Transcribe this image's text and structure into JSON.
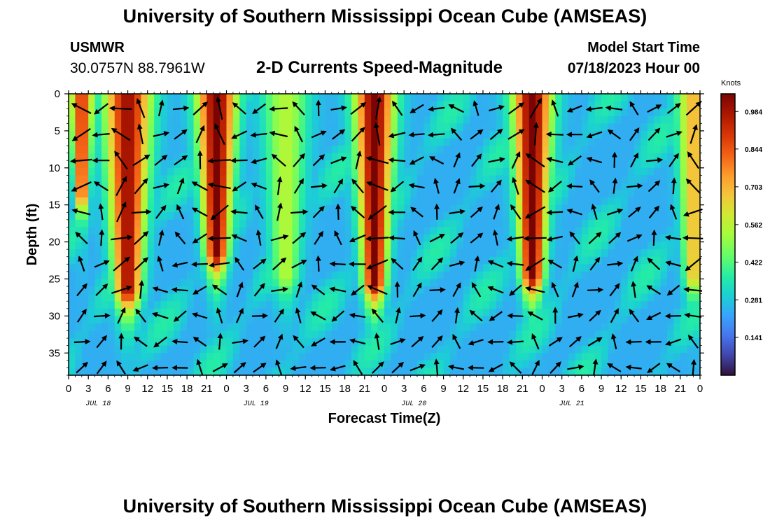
{
  "header": {
    "title": "University of Southern Mississippi Ocean Cube (AMSEAS)",
    "station_name": "USMWR",
    "station_coords": "30.0757N  88.7961W",
    "chart_title": "2-D Currents Speed-Magnitude",
    "model_start_label": "Model Start Time",
    "model_start_value": "07/18/2023 Hour 00"
  },
  "footer": {
    "title": "University of Southern Mississippi Ocean Cube (AMSEAS)"
  },
  "chart_data": {
    "type": "heatmap",
    "title": "2-D Currents Speed-Magnitude",
    "xlabel": "Forecast Time(Z)",
    "ylabel": "Depth (ft)",
    "x_range_hours": [
      0,
      96
    ],
    "y_range_ft": [
      0,
      38
    ],
    "x_tick_labels": [
      "0",
      "3",
      "6",
      "9",
      "12",
      "15",
      "18",
      "21",
      "0",
      "3",
      "6",
      "9",
      "12",
      "15",
      "18",
      "21",
      "0",
      "3",
      "6",
      "9",
      "12",
      "15",
      "18",
      "21",
      "0",
      "3",
      "6",
      "9",
      "12",
      "15",
      "18",
      "21",
      "0"
    ],
    "y_ticks": [
      0,
      5,
      10,
      15,
      20,
      25,
      30,
      35
    ],
    "date_labels": [
      {
        "label": "JUL 18",
        "hour": 4.5
      },
      {
        "label": "JUL 19",
        "hour": 28.5
      },
      {
        "label": "JUL 20",
        "hour": 52.5
      },
      {
        "label": "JUL 21",
        "hour": 76.5
      }
    ],
    "colorbar": {
      "unit": "Knots",
      "ticks": [
        "0.984",
        "0.844",
        "0.703",
        "0.562",
        "0.422",
        "0.281",
        "0.141"
      ],
      "tick_values": [
        0.984,
        0.844,
        0.703,
        0.562,
        0.422,
        0.281,
        0.141
      ],
      "range": [
        0.0,
        1.05
      ]
    },
    "speed_pulses": [
      {
        "center_hour": 2,
        "width_hours": 1.8,
        "peak_knots": 0.9,
        "max_depth_ft": 14
      },
      {
        "center_hour": 9,
        "width_hours": 3.5,
        "peak_knots": 1.0,
        "max_depth_ft": 27
      },
      {
        "center_hour": 22.5,
        "width_hours": 3.0,
        "peak_knots": 1.05,
        "max_depth_ft": 22
      },
      {
        "center_hour": 33,
        "width_hours": 3.5,
        "peak_knots": 0.55,
        "max_depth_ft": 25
      },
      {
        "center_hour": 46.5,
        "width_hours": 3.0,
        "peak_knots": 1.05,
        "max_depth_ft": 26
      },
      {
        "center_hour": 70.5,
        "width_hours": 3.0,
        "peak_knots": 1.05,
        "max_depth_ft": 25
      },
      {
        "center_hour": 95,
        "width_hours": 2.5,
        "peak_knots": 0.7,
        "max_depth_ft": 25
      }
    ],
    "background_knots": 0.24
  }
}
